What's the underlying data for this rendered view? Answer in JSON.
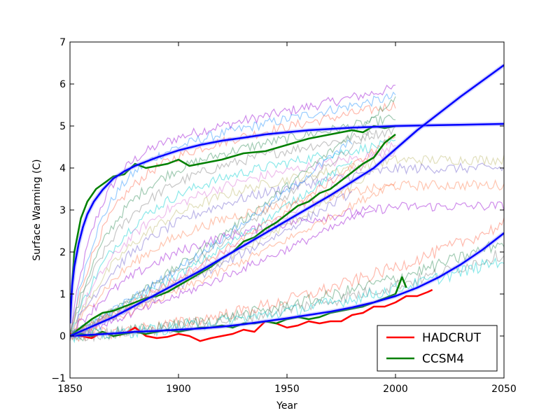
{
  "chart_data": {
    "type": "line",
    "title": "",
    "xlabel": "Year",
    "ylabel": "Surface Warming (C)",
    "xlim": [
      1850,
      2050
    ],
    "ylim": [
      -1,
      7
    ],
    "xticks": [
      1850,
      1900,
      1950,
      2000,
      2050
    ],
    "yticks": [
      -1,
      0,
      1,
      2,
      3,
      4,
      5,
      6,
      7
    ],
    "grid": false,
    "legend_position": "lower-right",
    "colors": {
      "hadcrut": "#ff0000",
      "ccsm4": "#008000",
      "fit": "#0000ff",
      "ensemble": [
        "#9400d3",
        "#1e90ff",
        "#ff6347",
        "#2e8b57",
        "#808080",
        "#00ced1",
        "#da70d6",
        "#bdb76b",
        "#6a5acd",
        "#ff7f50"
      ]
    },
    "legend": [
      {
        "name": "HADCRUT",
        "color": "#ff0000"
      },
      {
        "name": "CCSM4",
        "color": "#008000"
      }
    ],
    "series": [
      {
        "name": "HADCRUT",
        "role": "legend",
        "color": "#ff0000",
        "x": [
          1850,
          1855,
          1860,
          1865,
          1870,
          1875,
          1880,
          1885,
          1890,
          1895,
          1900,
          1905,
          1910,
          1915,
          1920,
          1925,
          1930,
          1935,
          1940,
          1945,
          1950,
          1955,
          1960,
          1965,
          1970,
          1975,
          1980,
          1985,
          1990,
          1995,
          2000,
          2005,
          2010,
          2015,
          2017
        ],
        "y": [
          0.05,
          0.0,
          -0.05,
          0.1,
          0.0,
          0.05,
          0.2,
          0.0,
          -0.05,
          -0.02,
          0.05,
          0.0,
          -0.12,
          -0.05,
          0.0,
          0.05,
          0.15,
          0.1,
          0.35,
          0.3,
          0.2,
          0.25,
          0.35,
          0.3,
          0.35,
          0.35,
          0.5,
          0.55,
          0.7,
          0.7,
          0.8,
          0.95,
          0.95,
          1.05,
          1.1
        ]
      },
      {
        "name": "CCSM4",
        "role": "legend",
        "color": "#008000",
        "x": [
          1850,
          1855,
          1860,
          1865,
          1870,
          1875,
          1880,
          1885,
          1890,
          1895,
          1900,
          1905,
          1910,
          1915,
          1920,
          1925,
          1930,
          1935,
          1940,
          1945,
          1950,
          1955,
          1960,
          1965,
          1970,
          1975,
          1980,
          1985,
          1990,
          1995,
          2000,
          2003,
          2005
        ],
        "y": [
          0.0,
          0.05,
          0.0,
          0.1,
          0.0,
          0.05,
          0.1,
          0.05,
          0.1,
          0.15,
          0.1,
          0.15,
          0.2,
          0.2,
          0.25,
          0.2,
          0.3,
          0.3,
          0.35,
          0.3,
          0.4,
          0.45,
          0.4,
          0.45,
          0.55,
          0.6,
          0.65,
          0.7,
          0.8,
          0.9,
          1.0,
          1.4,
          1.15
        ]
      },
      {
        "name": "",
        "role": "fit",
        "color": "#0000ff",
        "x": [
          1850,
          1860,
          1870,
          1880,
          1890,
          1900,
          1910,
          1920,
          1930,
          1940,
          1950,
          1960,
          1970,
          1980,
          1990,
          2000,
          2010,
          2020,
          2030,
          2040,
          2050
        ],
        "y": [
          0.0,
          0.03,
          0.06,
          0.1,
          0.12,
          0.15,
          0.18,
          0.22,
          0.28,
          0.35,
          0.42,
          0.5,
          0.58,
          0.68,
          0.8,
          0.95,
          1.15,
          1.4,
          1.7,
          2.05,
          2.45
        ]
      },
      {
        "name": "",
        "role": "abrupt-ccsm4",
        "color": "#008000",
        "x": [
          1850,
          1852,
          1855,
          1858,
          1862,
          1866,
          1870,
          1875,
          1880,
          1885,
          1890,
          1895,
          1900,
          1905,
          1910,
          1920,
          1930,
          1940,
          1950,
          1960,
          1970,
          1980,
          1985,
          1990,
          1995,
          2000
        ],
        "y": [
          0.5,
          2.0,
          2.8,
          3.2,
          3.5,
          3.65,
          3.8,
          3.85,
          4.1,
          4.0,
          4.05,
          4.1,
          4.2,
          4.05,
          4.1,
          4.2,
          4.35,
          4.4,
          4.55,
          4.7,
          4.8,
          4.9,
          4.85,
          5.0,
          4.95,
          5.0
        ]
      },
      {
        "name": "",
        "role": "abrupt-fit",
        "color": "#0000ff",
        "x": [
          1850,
          1851,
          1852,
          1854,
          1856,
          1858,
          1861,
          1865,
          1870,
          1875,
          1880,
          1890,
          1900,
          1910,
          1920,
          1930,
          1940,
          1950,
          1960,
          1970,
          1980,
          1990,
          2000,
          2010,
          2020,
          2030,
          2040,
          2050
        ],
        "y": [
          0.3,
          1.2,
          1.65,
          2.2,
          2.6,
          2.9,
          3.2,
          3.48,
          3.75,
          3.92,
          4.05,
          4.25,
          4.42,
          4.55,
          4.65,
          4.72,
          4.8,
          4.85,
          4.9,
          4.93,
          4.96,
          4.98,
          5.0,
          5.01,
          5.02,
          5.03,
          5.04,
          5.05
        ]
      },
      {
        "name": "",
        "role": "ramp-ccsm4",
        "color": "#008000",
        "x": [
          1850,
          1855,
          1860,
          1865,
          1870,
          1875,
          1880,
          1885,
          1890,
          1895,
          1900,
          1905,
          1910,
          1915,
          1920,
          1925,
          1930,
          1935,
          1940,
          1945,
          1950,
          1955,
          1960,
          1965,
          1970,
          1975,
          1980,
          1985,
          1990,
          1995,
          2000
        ],
        "y": [
          0.0,
          0.2,
          0.4,
          0.55,
          0.6,
          0.7,
          0.8,
          0.9,
          0.95,
          1.05,
          1.2,
          1.35,
          1.5,
          1.65,
          1.85,
          2.0,
          2.25,
          2.35,
          2.55,
          2.7,
          2.9,
          3.1,
          3.2,
          3.4,
          3.5,
          3.7,
          3.9,
          4.1,
          4.25,
          4.6,
          4.8
        ]
      },
      {
        "name": "",
        "role": "ramp-fit",
        "color": "#0000ff",
        "x": [
          1850,
          1870,
          1890,
          1910,
          1930,
          1950,
          1970,
          1990,
          2010,
          2030,
          2050
        ],
        "y": [
          0.0,
          0.45,
          1.0,
          1.55,
          2.15,
          2.75,
          3.35,
          4.0,
          4.9,
          5.7,
          6.45
        ]
      }
    ]
  },
  "legend": {
    "hadcrut_label": "HADCRUT",
    "ccsm4_label": "CCSM4"
  },
  "axes": {
    "xlabel": "Year",
    "ylabel": "Surface Warming (C)",
    "xtick_labels": [
      "1850",
      "1900",
      "1950",
      "2000",
      "2050"
    ],
    "ytick_labels": [
      "−1",
      "0",
      "1",
      "2",
      "3",
      "4",
      "5",
      "6",
      "7"
    ]
  }
}
